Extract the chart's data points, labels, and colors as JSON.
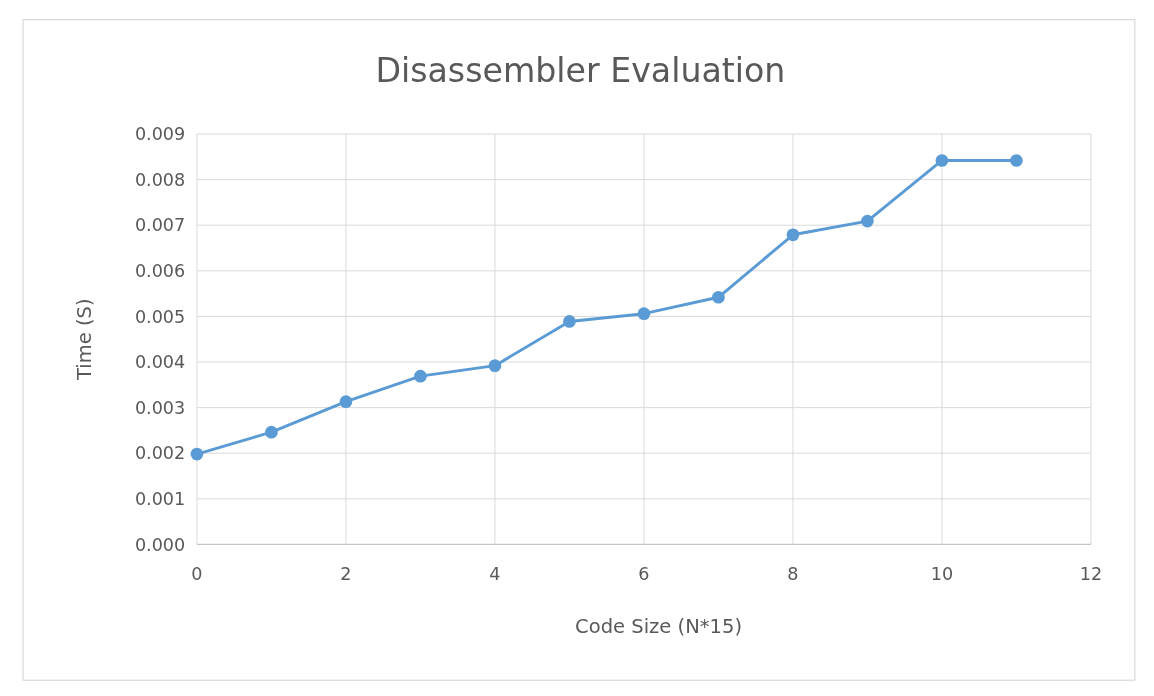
{
  "chart_data": {
    "type": "line",
    "title": "Disassembler Evaluation",
    "xlabel": "Code Size (N*15)",
    "ylabel": "Time (S)",
    "x": [
      0,
      1,
      2,
      3,
      4,
      5,
      6,
      7,
      8,
      9,
      10,
      11
    ],
    "series": [
      {
        "color": "#5b9bd5",
        "values": [
          0.00198,
          0.00246,
          0.00313,
          0.00369,
          0.00392,
          0.00489,
          0.00506,
          0.00542,
          0.00679,
          0.00709,
          0.00842,
          0.00842
        ]
      }
    ],
    "xlim": [
      0,
      12
    ],
    "xticks": [
      0,
      2,
      4,
      6,
      8,
      10,
      12
    ],
    "ylim": [
      0,
      0.009
    ],
    "yticks": [
      {
        "value": 0,
        "label": "0.000"
      },
      {
        "value": 0.001,
        "label": "0.001"
      },
      {
        "value": 0.002,
        "label": "0.002"
      },
      {
        "value": 0.003,
        "label": "0.003"
      },
      {
        "value": 0.004,
        "label": "0.004"
      },
      {
        "value": 0.005,
        "label": "0.005"
      },
      {
        "value": 0.006,
        "label": "0.006"
      },
      {
        "value": 0.007,
        "label": "0.007"
      },
      {
        "value": 0.008,
        "label": "0.008"
      },
      {
        "value": 0.009,
        "label": "0.009"
      }
    ],
    "grid": true,
    "marker": "circle",
    "line_style": "solid"
  }
}
